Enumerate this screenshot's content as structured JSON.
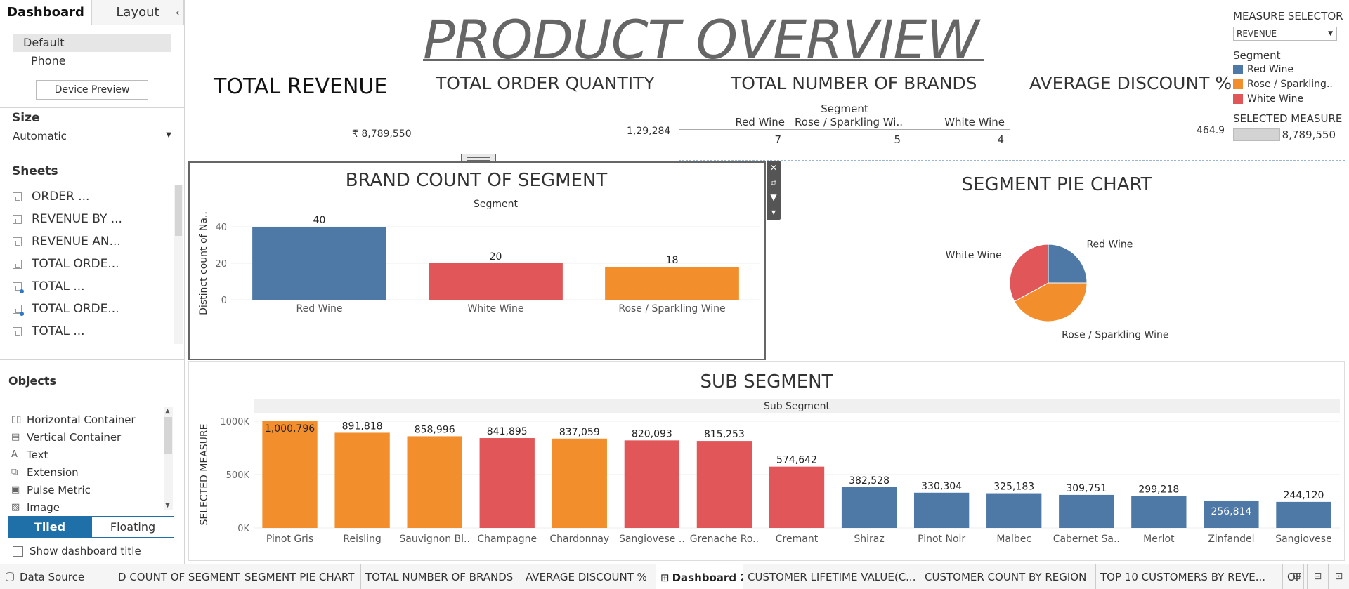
{
  "left_panel": {
    "tabs": [
      "Dashboard",
      "Layout"
    ],
    "devices": [
      "Default",
      "Phone"
    ],
    "device_preview": "Device Preview",
    "size_title": "Size",
    "size_value": "Automatic",
    "sheets_title": "Sheets",
    "sheets": [
      "ORDER ...",
      "REVENUE BY ...",
      "REVENUE AN...",
      "TOTAL ORDE...",
      "TOTAL ...",
      "TOTAL ORDE...",
      "TOTAL ..."
    ],
    "objects_title": "Objects",
    "objects": [
      {
        "label": "Horizontal Container",
        "icon": "horizontal-container-icon",
        "glyph": "▯▯"
      },
      {
        "label": "Vertical Container",
        "icon": "vertical-container-icon",
        "glyph": "▤"
      },
      {
        "label": "Text",
        "icon": "text-icon",
        "glyph": "A"
      },
      {
        "label": "Extension",
        "icon": "extension-icon",
        "glyph": "⧉"
      },
      {
        "label": "Pulse Metric",
        "icon": "pulse-metric-icon",
        "glyph": "▣"
      },
      {
        "label": "Image",
        "icon": "image-icon",
        "glyph": "▨"
      }
    ],
    "tiled": "Tiled",
    "floating": "Floating",
    "show_title": "Show dashboard title"
  },
  "dashboard": {
    "title": "PRODUCT OVERVIEW",
    "kpis": {
      "revenue_title": "TOTAL REVENUE",
      "revenue_value": "₹ 8,789,550",
      "order_title": "TOTAL ORDER QUANTITY",
      "order_value": "1,29,284",
      "brands_title": "TOTAL NUMBER OF BRANDS",
      "discount_title": "AVERAGE DISCOUNT %",
      "discount_value": "464.9"
    },
    "brand_table": {
      "header": "Segment",
      "columns": [
        "Red Wine",
        "Rose / Sparkling Wi..",
        "White Wine"
      ],
      "values": [
        "7",
        "5",
        "4"
      ]
    },
    "measure_selector": {
      "title": "MEASURE SELECTOR",
      "value": "REVENUE"
    },
    "legend": {
      "title": "Segment",
      "items": [
        {
          "label": "Red Wine",
          "color": "#4e79a7"
        },
        {
          "label": "Rose / Sparkling..",
          "color": "#f28e2b"
        },
        {
          "label": "White Wine",
          "color": "#e15759"
        }
      ]
    },
    "selected_measure": {
      "title": "SELECTED MEASURE",
      "value": "8,789,550",
      "fill_fraction": 0.45
    }
  },
  "chart_data": [
    {
      "type": "bar",
      "title": "BRAND COUNT OF SEGMENT",
      "header": "Segment",
      "ylabel": "Distinct count of Na..",
      "categories": [
        "Red Wine",
        "White Wine",
        "Rose / Sparkling Wine"
      ],
      "values": [
        40,
        20,
        18
      ],
      "labels": [
        "40",
        "20",
        "18"
      ],
      "colors": [
        "#4e79a7",
        "#e15759",
        "#f28e2b"
      ],
      "yticks": [
        "0",
        "20",
        "40"
      ],
      "ylim": [
        0,
        40
      ]
    },
    {
      "type": "pie",
      "title": "SEGMENT PIE CHART",
      "categories": [
        "Red Wine",
        "Rose / Sparkling Wine",
        "White Wine"
      ],
      "values": [
        25,
        42,
        33
      ],
      "colors": [
        "#4e79a7",
        "#f28e2b",
        "#e15759"
      ]
    },
    {
      "type": "bar",
      "title": "SUB SEGMENT",
      "header": "Sub Segment",
      "ylabel": "SELECTED MEASURE",
      "categories": [
        "Pinot Gris",
        "Reisling",
        "Sauvignon Bl..",
        "Champagne",
        "Chardonnay",
        "Sangiovese ..",
        "Grenache Ro..",
        "Cremant",
        "Shiraz",
        "Pinot Noir",
        "Malbec",
        "Cabernet Sa..",
        "Merlot",
        "Zinfandel",
        "Sangiovese"
      ],
      "values": [
        1000796,
        891818,
        858996,
        841895,
        837059,
        820093,
        815253,
        574642,
        382528,
        330304,
        325183,
        309751,
        299218,
        256814,
        244120
      ],
      "labels": [
        "1,000,796",
        "891,818",
        "858,996",
        "841,895",
        "837,059",
        "820,093",
        "815,253",
        "574,642",
        "382,528",
        "330,304",
        "325,183",
        "309,751",
        "299,218",
        "256,814",
        "244,120"
      ],
      "colors": [
        "#f28e2b",
        "#f28e2b",
        "#f28e2b",
        "#e15759",
        "#f28e2b",
        "#e15759",
        "#e15759",
        "#e15759",
        "#4e79a7",
        "#4e79a7",
        "#4e79a7",
        "#4e79a7",
        "#4e79a7",
        "#4e79a7",
        "#4e79a7"
      ],
      "yticks": [
        "0K",
        "500K",
        "1000K"
      ],
      "ylim": [
        0,
        1000000
      ]
    }
  ],
  "bottom_tabs": {
    "data_source": "Data Source",
    "sheets": [
      "D COUNT OF SEGMENT",
      "SEGMENT PIE CHART",
      "TOTAL NUMBER OF BRANDS",
      "AVERAGE DISCOUNT %",
      "Dashboard 2",
      "CUSTOMER LIFETIME VALUE(C...",
      "CUSTOMER COUNT BY REGION",
      "TOP 10 CUSTOMERS BY REVE...",
      "OF"
    ],
    "active": "Dashboard 2"
  }
}
